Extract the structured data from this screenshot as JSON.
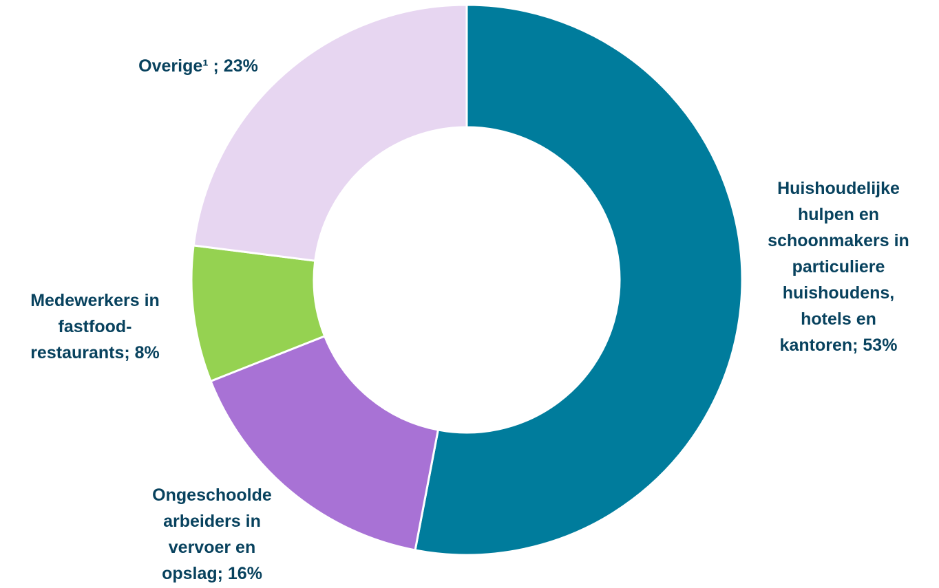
{
  "chart_data": {
    "type": "pie",
    "variant": "donut",
    "title": "",
    "label_color": "#08425E",
    "slices": [
      {
        "category": "Huishoudelijke hulpen en schoonmakers in particuliere huishoudens, hotels en kantoren",
        "value": 53,
        "label_lines": [
          "Huishoudelijke",
          "hulpen en",
          "schoonmakers in",
          "particuliere",
          "huishoudens,",
          "hotels en",
          "kantoren; 53%"
        ],
        "color": "#007C9C"
      },
      {
        "category": "Ongeschoolde arbeiders in vervoer en opslag",
        "value": 16,
        "label_lines": [
          "Ongeschoolde",
          "arbeiders in",
          "vervoer en",
          "opslag; 16%"
        ],
        "color": "#A872D5"
      },
      {
        "category": "Medewerkers in fastfood-restaurants",
        "value": 8,
        "label_lines": [
          "Medewerkers in",
          "fastfood-",
          "restaurants; 8%"
        ],
        "color": "#95D251"
      },
      {
        "category": "Overige¹",
        "value": 23,
        "label_lines": [
          "Overige¹ ; 23%"
        ],
        "color": "#E7D6F1"
      }
    ]
  }
}
